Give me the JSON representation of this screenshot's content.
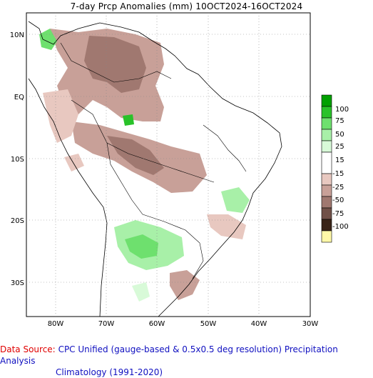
{
  "title": "7-day Prcp Anomalies (mm) 10OCT2024-16OCT2024",
  "lat_labels": [
    "10N",
    "EQ",
    "10S",
    "20S",
    "30S"
  ],
  "lon_labels": [
    "80W",
    "70W",
    "60W",
    "50W",
    "40W",
    "30W"
  ],
  "legend": {
    "labels": [
      "100",
      "75",
      "50",
      "25",
      "15",
      "-15",
      "-25",
      "-50",
      "-75",
      "-100"
    ],
    "colors": {
      "g100": "#00a000",
      "g75": "#29c229",
      "g50": "#6ee06e",
      "g25": "#a8f0a8",
      "g15": "#d8fad8",
      "white": "#ffffff",
      "b15": "#e8c8c0",
      "b25": "#c8a098",
      "b50": "#a07870",
      "b75": "#705048",
      "b100": "#3a2418",
      "yellow": "#fff8a8"
    }
  },
  "footer": {
    "source_label": "Data Source:",
    "source_text": "CPC Unified (gauge-based & 0.5x0.5 deg resolution) Precipitation Analysis",
    "climatology": "Climatology (1991-2020)"
  }
}
